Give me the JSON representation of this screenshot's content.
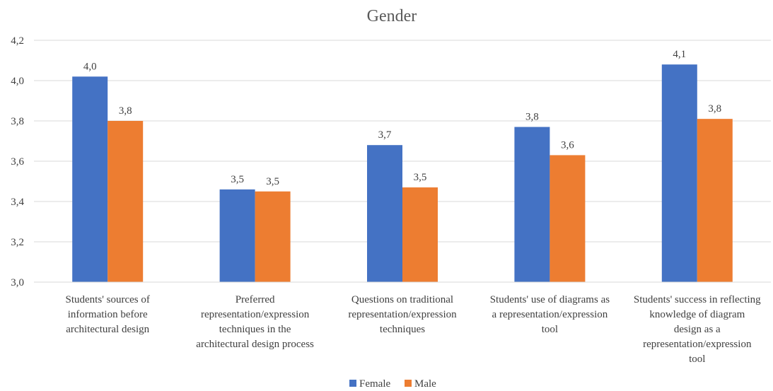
{
  "chart_data": {
    "type": "bar",
    "title": "Gender",
    "xlabel": "",
    "ylabel": "",
    "ylim": [
      3.0,
      4.2
    ],
    "yticks": [
      "3,0",
      "3,2",
      "3,4",
      "3,6",
      "3,8",
      "4,0",
      "4,2"
    ],
    "ytick_values": [
      3.0,
      3.2,
      3.4,
      3.6,
      3.8,
      4.0,
      4.2
    ],
    "grid": true,
    "legend_position": "bottom",
    "categories": [
      [
        "Students' sources of",
        "information before",
        "architectural design"
      ],
      [
        "Preferred",
        "representation/expression",
        "techniques in the",
        "architectural design process"
      ],
      [
        "Questions on traditional",
        "representation/expression",
        "techniques"
      ],
      [
        "Students' use of diagrams as",
        "a representation/expression",
        "tool"
      ],
      [
        "Students' success in reflecting",
        "knowledge of diagram",
        "design as a",
        "representation/expression",
        "tool"
      ]
    ],
    "series": [
      {
        "name": "Female",
        "color": "#4472C4",
        "values": [
          4.02,
          3.46,
          3.68,
          3.77,
          4.08
        ],
        "labels": [
          "4,0",
          "3,5",
          "3,7",
          "3,8",
          "4,1"
        ]
      },
      {
        "name": "Male",
        "color": "#ED7D31",
        "values": [
          3.8,
          3.45,
          3.47,
          3.63,
          3.81
        ],
        "labels": [
          "3,8",
          "3,5",
          "3,5",
          "3,6",
          "3,8"
        ]
      }
    ]
  }
}
